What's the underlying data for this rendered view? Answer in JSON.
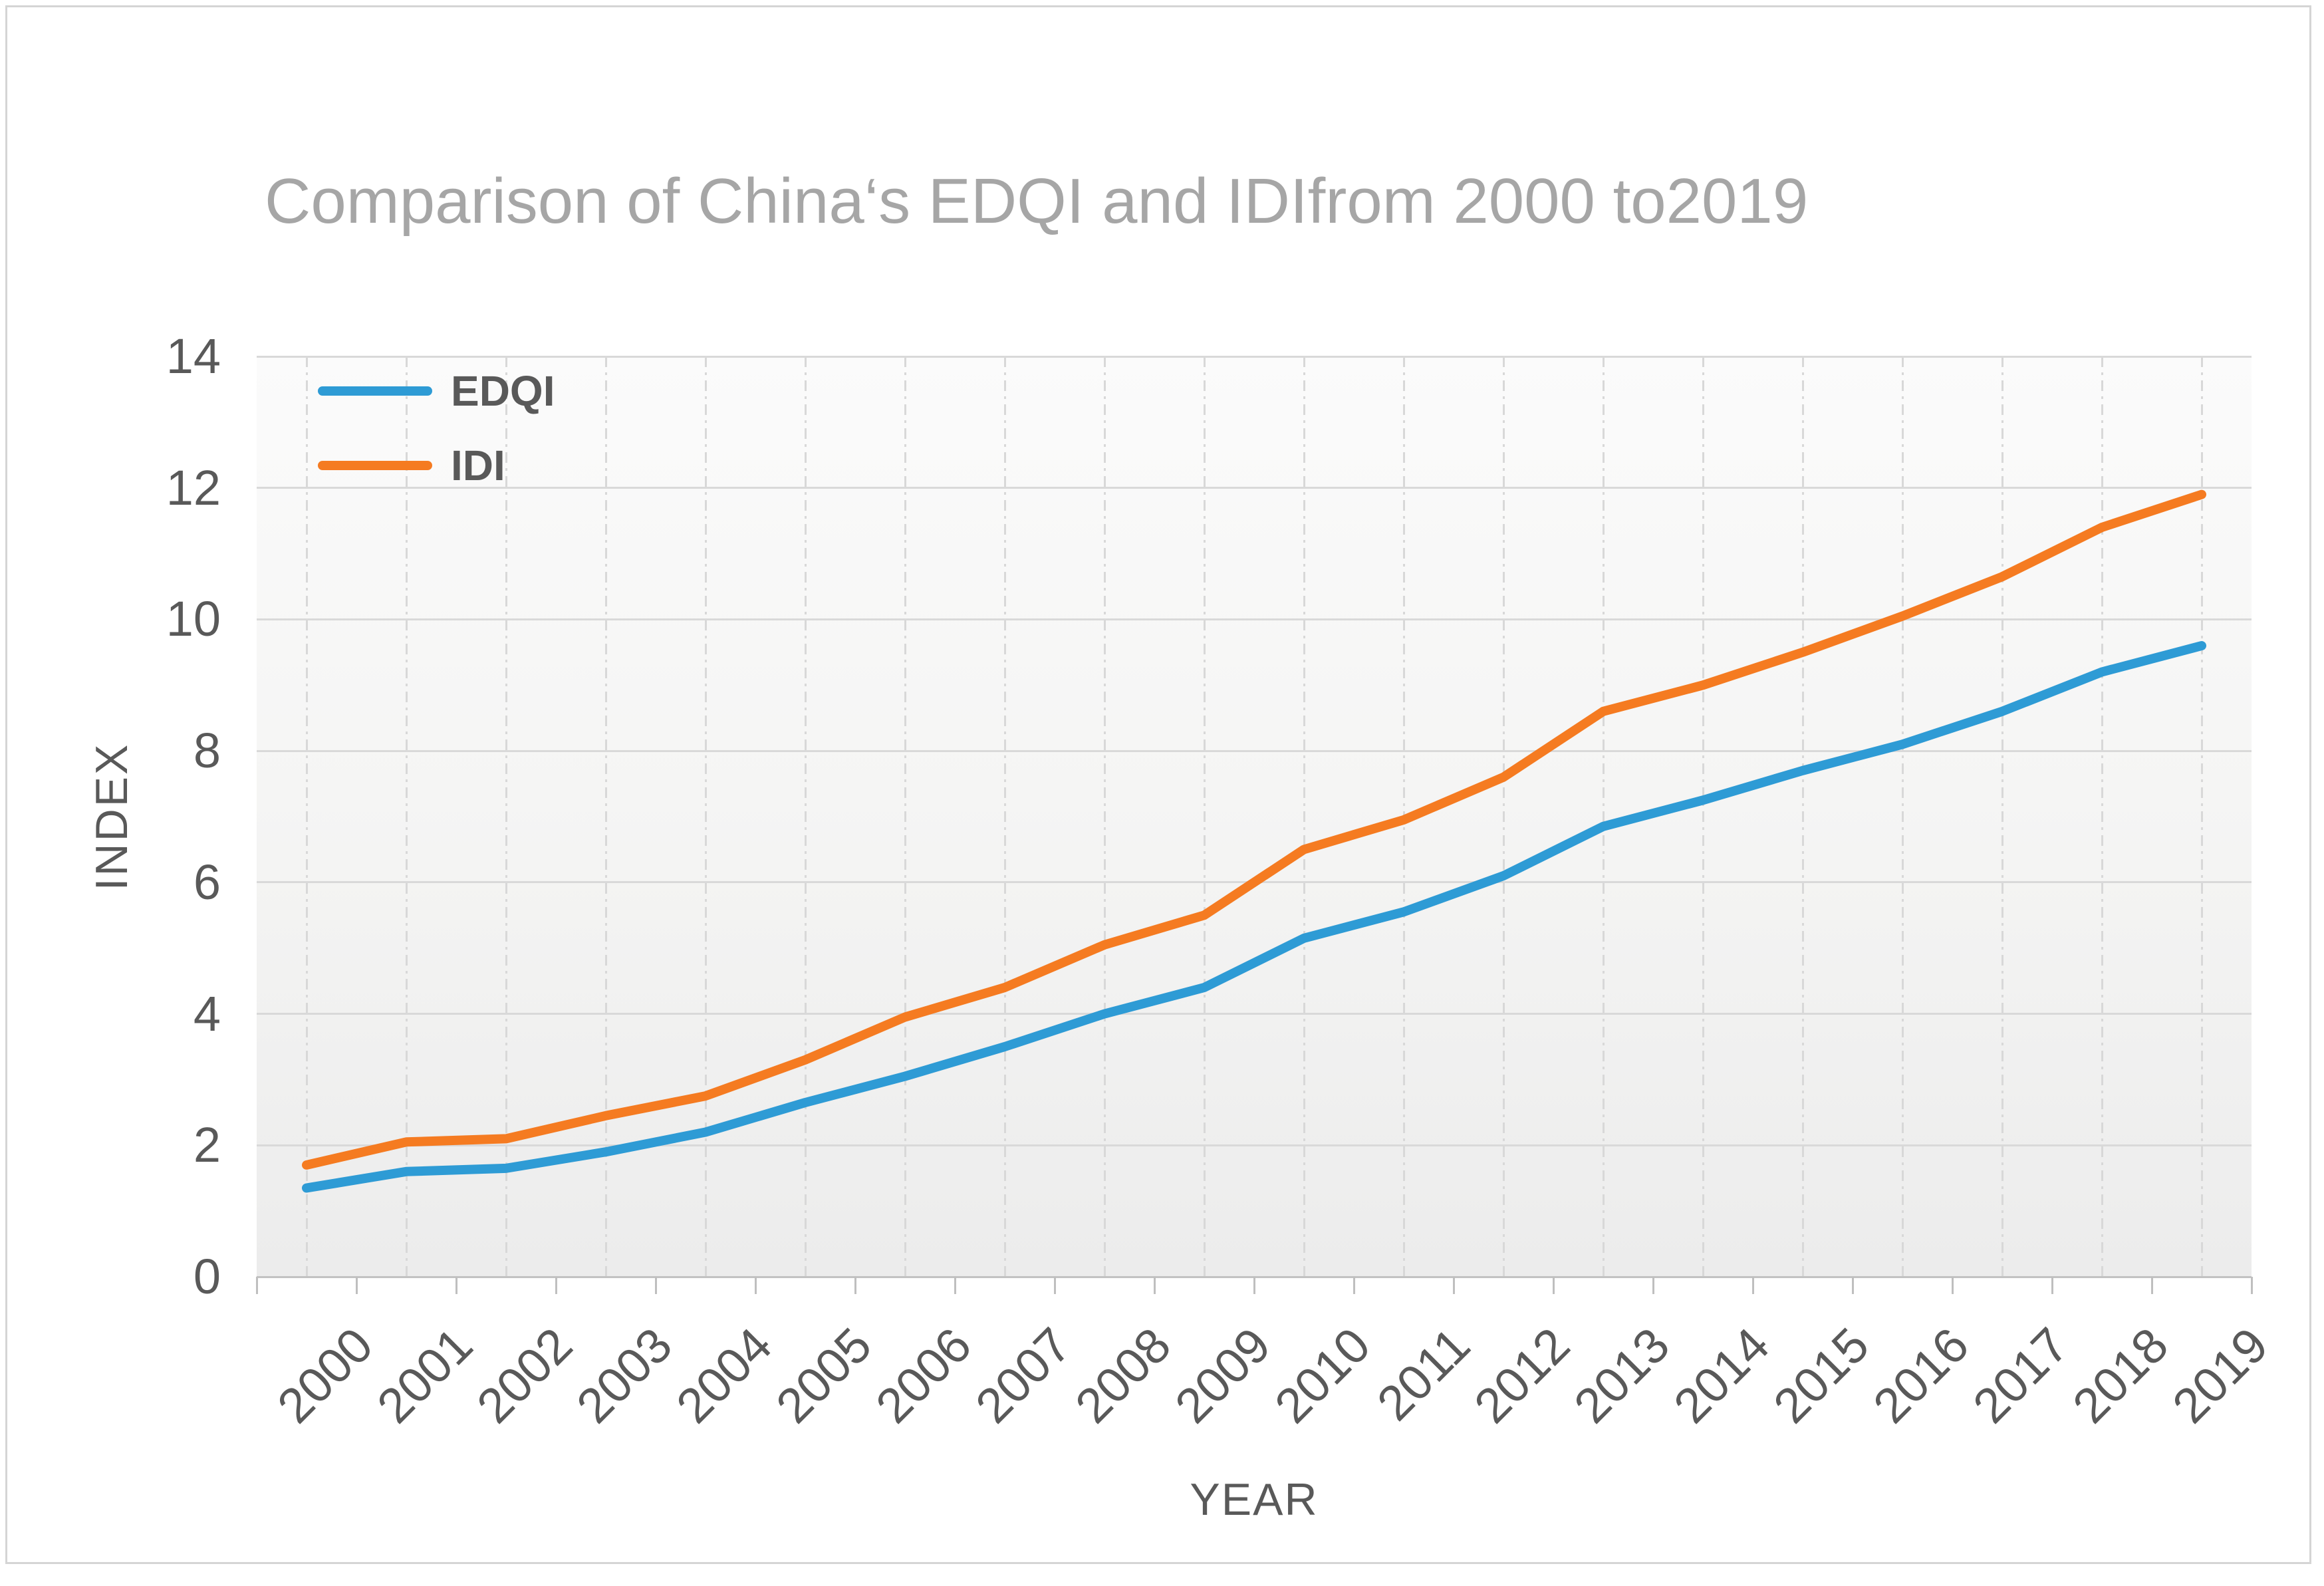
{
  "title": "Comparison of China‘s EDQI and IDIfrom 2000 to2019",
  "colors": {
    "title_text": "#A6A6A6",
    "axis_text": "#595959",
    "gridline": "#D9D9D9",
    "axis_line": "#C2C2C2",
    "edqi_line": "#2E9BD5",
    "idi_line": "#F57B21",
    "plot_bg_top": "#FBFBFB",
    "plot_bg_bottom": "#ECECEC"
  },
  "chart_data": {
    "type": "line",
    "title": "Comparison of China‘s EDQI and IDIfrom 2000 to2019",
    "xlabel": "YEAR",
    "ylabel": "INDEX",
    "ylim": [
      0,
      14
    ],
    "yticks": [
      0,
      2,
      4,
      6,
      8,
      10,
      12,
      14
    ],
    "grid": true,
    "legend_position": "top-left-inside",
    "categories": [
      "2000",
      "2001",
      "2002",
      "2003",
      "2004",
      "2005",
      "2006",
      "2007",
      "2008",
      "2009",
      "2010",
      "2011",
      "2012",
      "2013",
      "2014",
      "2015",
      "2016",
      "2017",
      "2018",
      "2019"
    ],
    "series": [
      {
        "name": "EDQI",
        "color": "#2E9BD5",
        "values": [
          1.35,
          1.6,
          1.65,
          1.9,
          2.2,
          2.65,
          3.05,
          3.5,
          4.0,
          4.4,
          5.15,
          5.55,
          6.1,
          6.85,
          7.25,
          7.7,
          8.1,
          8.6,
          9.2,
          9.6
        ]
      },
      {
        "name": "IDI",
        "color": "#F57B21",
        "values": [
          1.7,
          2.05,
          2.1,
          2.45,
          2.75,
          3.3,
          3.95,
          4.4,
          5.05,
          5.5,
          6.5,
          6.95,
          7.6,
          8.6,
          9.0,
          9.5,
          10.05,
          10.65,
          11.4,
          11.9
        ]
      }
    ]
  }
}
